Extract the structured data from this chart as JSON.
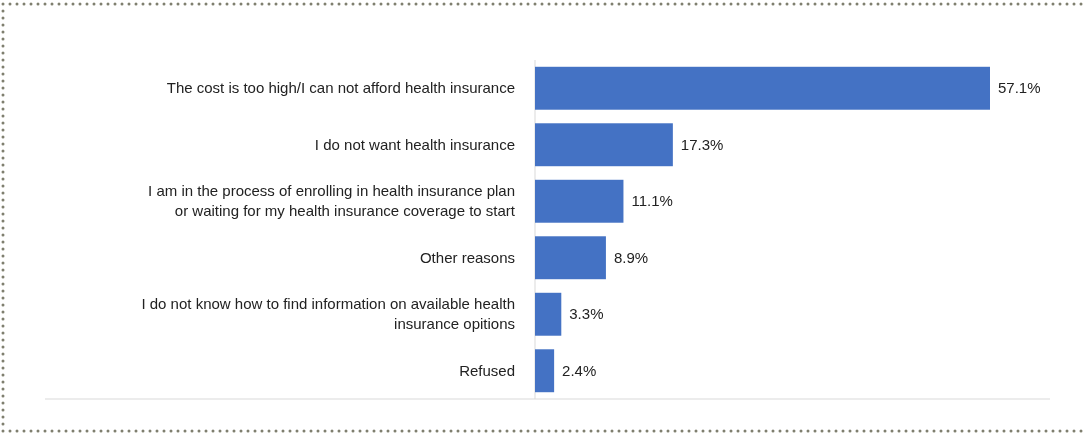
{
  "chart_data": {
    "type": "bar",
    "orientation": "horizontal",
    "categories": [
      "The cost is too high/I can not afford health insurance",
      "I do not want health insurance",
      "I am in the process of enrolling in health insurance plan or waiting for my health insurance coverage to start",
      "Other reasons",
      "I do not know how to find information on available health insurance opitions",
      "Refused"
    ],
    "values": [
      57.1,
      17.3,
      11.1,
      8.9,
      3.3,
      2.4
    ],
    "value_labels": [
      "57.1%",
      "17.3%",
      "11.1%",
      "8.9%",
      "3.3%",
      "2.4%"
    ],
    "color": "#4472c4"
  }
}
